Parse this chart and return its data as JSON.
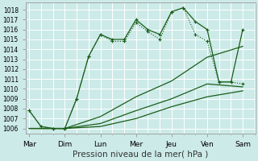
{
  "background_color": "#cceae8",
  "grid_color": "#ffffff",
  "line_color": "#1a5e1a",
  "ylim": [
    1005.5,
    1018.7
  ],
  "yticks": [
    1006,
    1007,
    1008,
    1009,
    1010,
    1011,
    1012,
    1013,
    1014,
    1015,
    1016,
    1017,
    1018
  ],
  "xlabel": "Pression niveau de la mer( hPa )",
  "x_labels": [
    "Mar",
    "Dim",
    "Lun",
    "Mer",
    "Jeu",
    "Ven",
    "Sam"
  ],
  "x_tick_positions": [
    0,
    1,
    2,
    3,
    4,
    5,
    6
  ],
  "series": [
    {
      "x": [
        0,
        0.33,
        0.67,
        1.0,
        1.33,
        1.67,
        2.0,
        2.33,
        2.67,
        3.0,
        3.33,
        3.67,
        4.0,
        4.33,
        4.67,
        5.0,
        5.33,
        5.67,
        6.0
      ],
      "y": [
        1007.8,
        1006.2,
        1006.0,
        1006.0,
        1009.0,
        1013.3,
        1015.5,
        1015.0,
        1015.0,
        1017.0,
        1016.0,
        1015.5,
        1017.8,
        1018.2,
        1016.8,
        1016.0,
        1010.7,
        1010.7,
        1016.0
      ],
      "marker": "+",
      "markersize": 3.5,
      "linewidth": 0.9,
      "linestyle": "-"
    },
    {
      "x": [
        0,
        0.33,
        0.67,
        1.0,
        1.33,
        1.67,
        2.0,
        2.33,
        2.67,
        3.0,
        3.33,
        3.67,
        4.0,
        4.33,
        4.67,
        5.0,
        5.33,
        5.67,
        6.0
      ],
      "y": [
        1007.8,
        1006.2,
        1006.0,
        1006.0,
        1009.0,
        1013.3,
        1015.5,
        1014.8,
        1014.8,
        1016.7,
        1015.8,
        1015.0,
        1017.8,
        1018.2,
        1015.5,
        1014.8,
        1010.7,
        1010.7,
        1010.5
      ],
      "marker": "+",
      "markersize": 3.0,
      "linewidth": 0.8,
      "linestyle": ":"
    },
    {
      "x": [
        0,
        1.0,
        2.0,
        3.0,
        4.0,
        5.0,
        6.0
      ],
      "y": [
        1006.0,
        1006.0,
        1007.2,
        1009.2,
        1010.8,
        1013.2,
        1014.3
      ],
      "marker": "None",
      "markersize": 0,
      "linewidth": 0.9,
      "linestyle": "-"
    },
    {
      "x": [
        0,
        1.0,
        2.0,
        3.0,
        4.0,
        5.0,
        6.0
      ],
      "y": [
        1006.0,
        1006.0,
        1006.5,
        1007.8,
        1009.0,
        1010.5,
        1010.2
      ],
      "marker": "None",
      "markersize": 0,
      "linewidth": 0.9,
      "linestyle": "-"
    },
    {
      "x": [
        0,
        1.0,
        2.0,
        3.0,
        4.0,
        5.0,
        6.0
      ],
      "y": [
        1006.0,
        1006.0,
        1006.2,
        1007.0,
        1008.2,
        1009.2,
        1009.8
      ],
      "marker": "None",
      "markersize": 0,
      "linewidth": 0.9,
      "linestyle": "-"
    }
  ],
  "xlabel_fontsize": 7.5,
  "ytick_fontsize": 5.5,
  "xtick_fontsize": 6.5
}
